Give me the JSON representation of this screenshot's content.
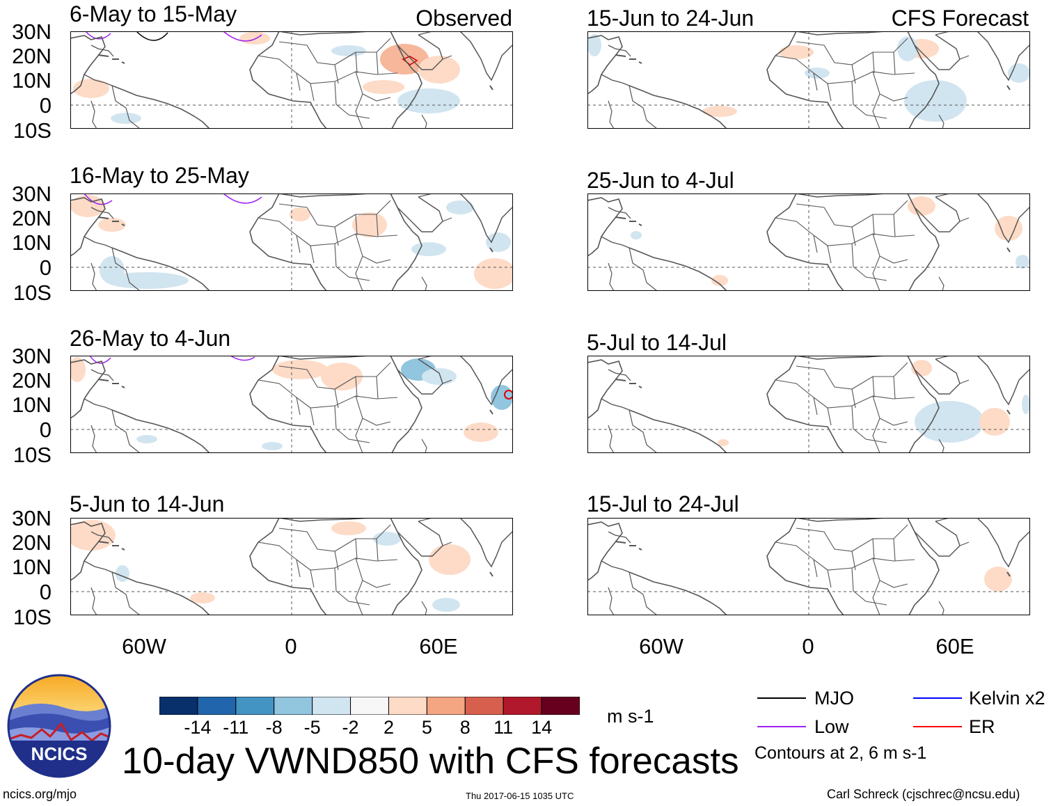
{
  "header": {
    "left_tag": "Observed",
    "right_tag": "CFS Forecast"
  },
  "panels_left": [
    {
      "title": "6-May to 15-May"
    },
    {
      "title": "16-May to 25-May"
    },
    {
      "title": "26-May to 4-Jun"
    },
    {
      "title": "5-Jun to 14-Jun"
    }
  ],
  "panels_right": [
    {
      "title": "15-Jun to 24-Jun"
    },
    {
      "title": "25-Jun to 4-Jul"
    },
    {
      "title": "5-Jul to 14-Jul"
    },
    {
      "title": "15-Jul to 24-Jul"
    }
  ],
  "axes": {
    "lat_labels": [
      "30N",
      "20N",
      "10N",
      "0",
      "10S"
    ],
    "lon_labels": [
      "60W",
      "0",
      "60E"
    ]
  },
  "colorbar": {
    "colors": [
      "#08306b",
      "#2166ac",
      "#4393c3",
      "#92c5de",
      "#d1e5f0",
      "#f7f7f7",
      "#fddbc7",
      "#f4a582",
      "#d6604d",
      "#b2182b",
      "#67001f"
    ],
    "labels": [
      "-14",
      "-11",
      "-8",
      "-5",
      "-2",
      "2",
      "5",
      "8",
      "11",
      "14"
    ],
    "units": "m s-1"
  },
  "legend": {
    "items": [
      {
        "label": "MJO",
        "color": "#000000"
      },
      {
        "label": "Kelvin x2",
        "color": "#0000ff"
      },
      {
        "label": "Low",
        "color": "#a020f0"
      },
      {
        "label": "ER",
        "color": "#ff0000"
      }
    ],
    "contours_note": "Contours at 2, 6 m s-1"
  },
  "main_title": "10-day VWND850 with CFS forecasts",
  "logo": {
    "text": "NCICS"
  },
  "footer": {
    "url": "ncics.org/mjo",
    "timestamp": "Thu 2017-06-15 1035 UTC",
    "credit": "Carl Schreck (cjschrec@ncsu.edu)"
  }
}
